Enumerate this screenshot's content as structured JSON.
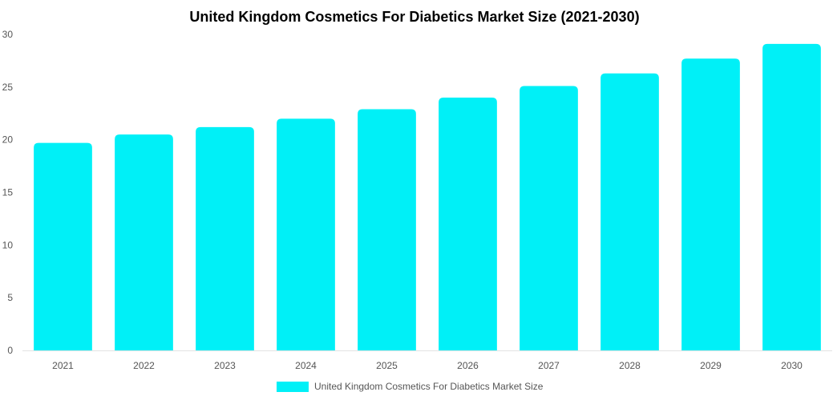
{
  "chart_data": {
    "type": "bar",
    "title": "United Kingdom Cosmetics For Diabetics Market Size (2021-2030)",
    "xlabel": "",
    "ylabel": "",
    "categories": [
      "2021",
      "2022",
      "2023",
      "2024",
      "2025",
      "2026",
      "2027",
      "2028",
      "2029",
      "2030"
    ],
    "series": [
      {
        "name": "United Kingdom Cosmetics For Diabetics Market Size",
        "values": [
          19.7,
          20.5,
          21.2,
          22.0,
          22.9,
          24.0,
          25.1,
          26.3,
          27.7,
          29.1
        ],
        "color": "#00f0f7"
      }
    ],
    "ylim": [
      0,
      30
    ],
    "yticks": [
      "0",
      "5",
      "10",
      "15",
      "20",
      "25",
      "30"
    ],
    "grid": false,
    "legend": "bottom-center"
  }
}
